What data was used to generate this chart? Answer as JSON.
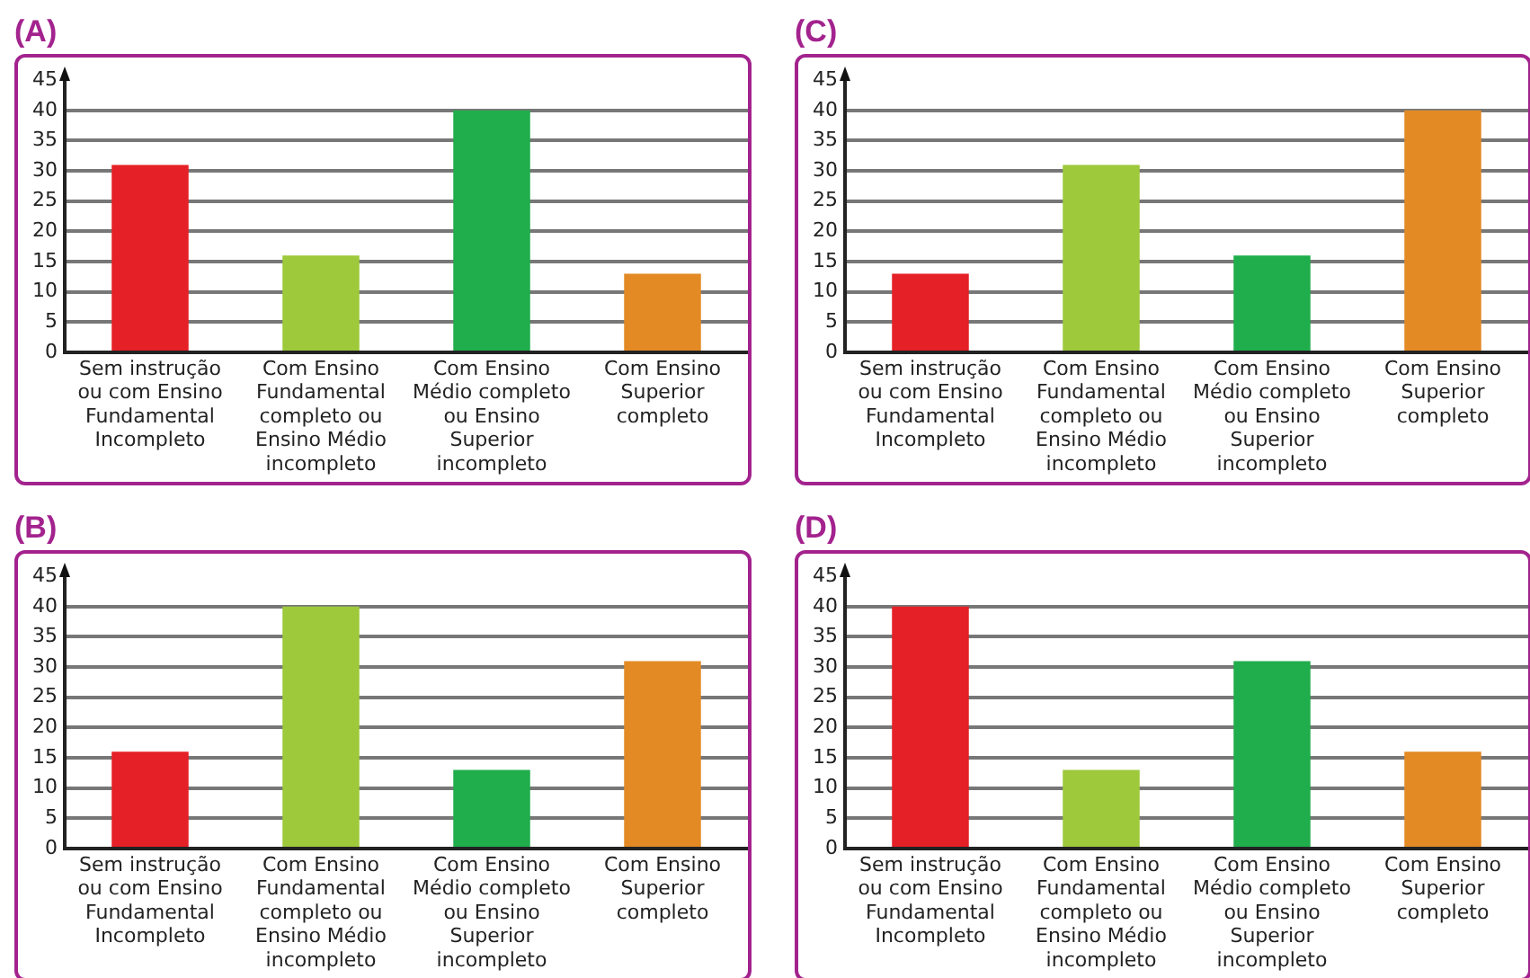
{
  "chart_data": [
    {
      "type": "bar",
      "title": "(A)",
      "categories": [
        "Sem instrução ou com Ensino Fundamental Incompleto",
        "Com Ensino Fundamental completo ou Ensino Médio incompleto",
        "Com Ensino Médio completo ou Ensino Superior incompleto",
        "Com Ensino Superior completo"
      ],
      "values": [
        31,
        16,
        40,
        13
      ],
      "colors": [
        "#e52026",
        "#9dc93b",
        "#20ad4c",
        "#e38a25"
      ],
      "ylim": [
        0,
        45
      ],
      "yticks": [
        0,
        5,
        10,
        15,
        20,
        25,
        30,
        35,
        40,
        45
      ],
      "grid": "y"
    },
    {
      "type": "bar",
      "title": "(C)",
      "categories": [
        "Sem instrução ou com Ensino Fundamental Incompleto",
        "Com Ensino Fundamental completo ou Ensino Médio incompleto",
        "Com Ensino Médio completo ou Ensino Superior incompleto",
        "Com Ensino Superior completo"
      ],
      "values": [
        13,
        31,
        16,
        40
      ],
      "colors": [
        "#e52026",
        "#9dc93b",
        "#20ad4c",
        "#e38a25"
      ],
      "ylim": [
        0,
        45
      ],
      "yticks": [
        0,
        5,
        10,
        15,
        20,
        25,
        30,
        35,
        40,
        45
      ],
      "grid": "y"
    },
    {
      "type": "bar",
      "title": "(B)",
      "categories": [
        "Sem instrução ou com Ensino Fundamental Incompleto",
        "Com Ensino Fundamental completo ou Ensino Médio incompleto",
        "Com Ensino Médio completo ou Ensino Superior incompleto",
        "Com Ensino Superior completo"
      ],
      "values": [
        16,
        40,
        13,
        31
      ],
      "colors": [
        "#e52026",
        "#9dc93b",
        "#20ad4c",
        "#e38a25"
      ],
      "ylim": [
        0,
        45
      ],
      "yticks": [
        0,
        5,
        10,
        15,
        20,
        25,
        30,
        35,
        40,
        45
      ],
      "grid": "y"
    },
    {
      "type": "bar",
      "title": "(D)",
      "categories": [
        "Sem instrução ou com Ensino Fundamental Incompleto",
        "Com Ensino Fundamental completo ou Ensino Médio incompleto",
        "Com Ensino Médio completo ou Ensino Superior incompleto",
        "Com Ensino Superior completo"
      ],
      "values": [
        40,
        13,
        31,
        16
      ],
      "colors": [
        "#e52026",
        "#9dc93b",
        "#20ad4c",
        "#e38a25"
      ],
      "ylim": [
        0,
        45
      ],
      "yticks": [
        0,
        5,
        10,
        15,
        20,
        25,
        30,
        35,
        40,
        45
      ],
      "grid": "y"
    }
  ]
}
